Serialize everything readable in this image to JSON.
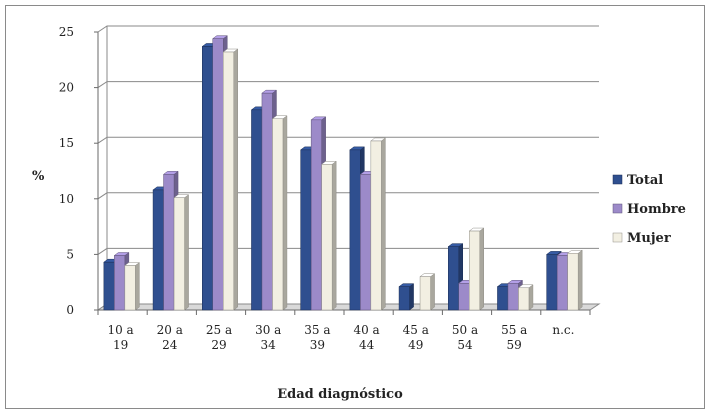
{
  "chart_data": {
    "type": "bar",
    "title": "",
    "xlabel": "Edad diagnóstico",
    "ylabel": "%",
    "ylim": [
      0,
      25
    ],
    "yticks": [
      "0",
      "5",
      "10",
      "15",
      "20",
      "25"
    ],
    "grid": true,
    "legend_position": "right",
    "categories": [
      [
        "10 a",
        "19"
      ],
      [
        "20 a",
        "24"
      ],
      [
        "25 a",
        "29"
      ],
      [
        "30 a",
        "34"
      ],
      [
        "35 a",
        "39"
      ],
      [
        "40 a",
        "44"
      ],
      [
        "45 a",
        "49"
      ],
      [
        "50 a",
        "54"
      ],
      [
        "55 a",
        "59"
      ],
      [
        "n.c."
      ]
    ],
    "series": [
      {
        "name": "Total",
        "color": "#2f4f8f",
        "values": [
          4.3,
          10.8,
          23.7,
          18.0,
          14.4,
          14.4,
          2.1,
          5.7,
          2.1,
          5.0
        ]
      },
      {
        "name": "Hombre",
        "color": "#9c8ac9",
        "values": [
          4.9,
          12.2,
          24.4,
          19.5,
          17.1,
          12.2,
          0,
          2.4,
          2.4,
          4.9
        ]
      },
      {
        "name": "Mujer",
        "color": "#f2efe2",
        "values": [
          4.0,
          10.1,
          23.2,
          17.2,
          13.1,
          15.2,
          3.0,
          7.1,
          2.0,
          5.1
        ]
      }
    ]
  }
}
